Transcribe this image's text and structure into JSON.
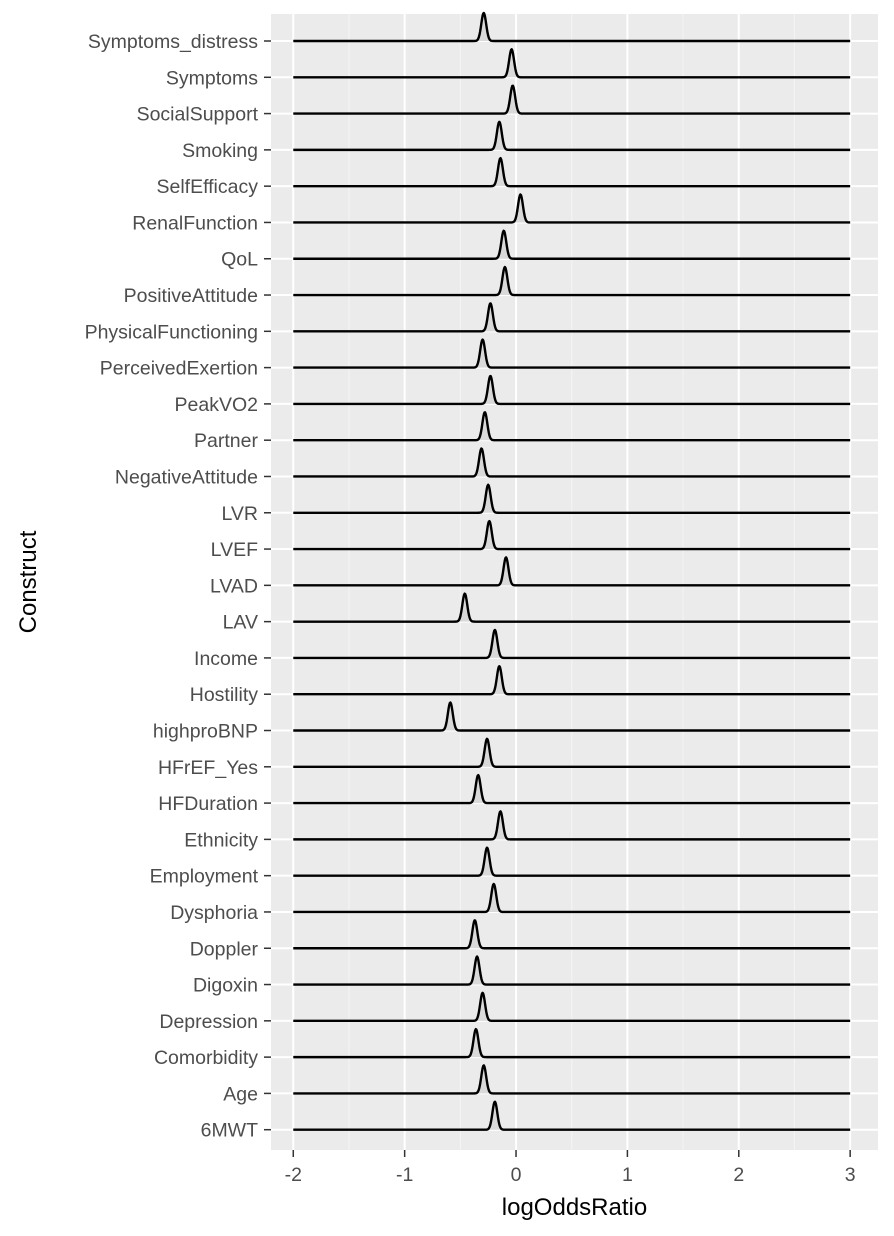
{
  "chart_data": {
    "type": "ridgeline",
    "xlabel": "logOddsRatio",
    "ylabel": "Construct",
    "xlim": [
      -2.2,
      3.25
    ],
    "xticks": [
      -2,
      -1,
      0,
      1,
      2,
      3
    ],
    "xtick_labels": [
      "-2",
      "-1",
      "0",
      "1",
      "2",
      "3"
    ],
    "grid": true,
    "legend": "none",
    "colors": {
      "panel": "#ebebeb",
      "grid_major": "#ffffff",
      "grid_minor": "#f5f5f5",
      "ridge": "#000000",
      "ridge_fill": "#d9d9d9",
      "tick_label": "#4d4d4d"
    },
    "categories": [
      "Symptoms_distress",
      "Symptoms",
      "SocialSupport",
      "Smoking",
      "SelfEfficacy",
      "RenalFunction",
      "QoL",
      "PositiveAttitude",
      "PhysicalFunctioning",
      "PerceivedExertion",
      "PeakVO2",
      "Partner",
      "NegativeAttitude",
      "LVR",
      "LVEF",
      "LVAD",
      "LAV",
      "Income",
      "Hostility",
      "highproBNP",
      "HFrEF_Yes",
      "HFDuration",
      "Ethnicity",
      "Employment",
      "Dysphoria",
      "Doppler",
      "Digoxin",
      "Depression",
      "Comorbidity",
      "Age",
      "6MWT"
    ],
    "peaks": [
      -0.29,
      -0.04,
      -0.03,
      -0.15,
      -0.14,
      0.04,
      -0.11,
      -0.1,
      -0.23,
      -0.3,
      -0.23,
      -0.28,
      -0.31,
      -0.25,
      -0.24,
      -0.09,
      -0.46,
      -0.19,
      -0.15,
      -0.59,
      -0.26,
      -0.34,
      -0.14,
      -0.26,
      -0.2,
      -0.37,
      -0.35,
      -0.3,
      -0.36,
      -0.29,
      -0.19
    ]
  }
}
